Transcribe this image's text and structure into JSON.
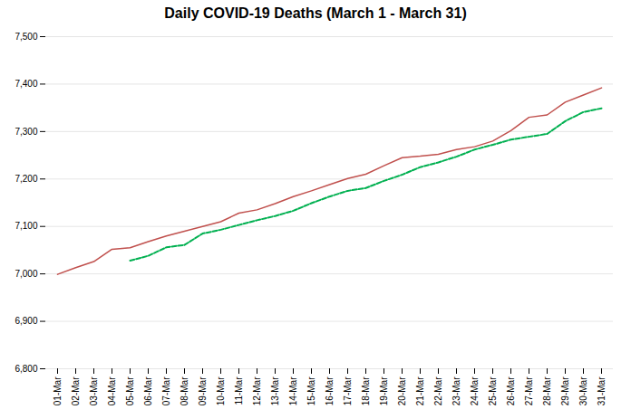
{
  "chart_data": {
    "type": "line",
    "title": "Daily COVID-19 Deaths (March 1 - March 31)",
    "categories": [
      "01-Mar",
      "02-Mar",
      "03-Mar",
      "04-Mar",
      "05-Mar",
      "06-Mar",
      "07-Mar",
      "08-Mar",
      "09-Mar",
      "10-Mar",
      "11-Mar",
      "12-Mar",
      "13-Mar",
      "14-Mar",
      "15-Mar",
      "16-Mar",
      "17-Mar",
      "18-Mar",
      "19-Mar",
      "20-Mar",
      "21-Mar",
      "22-Mar",
      "23-Mar",
      "24-Mar",
      "25-Mar",
      "26-Mar",
      "27-Mar",
      "28-Mar",
      "29-Mar",
      "30-Mar",
      "31-Mar"
    ],
    "series": [
      {
        "color": "#C0504D",
        "line_style": "solid",
        "values": [
          6999,
          7013,
          7026,
          7052,
          7055,
          7068,
          7080,
          7090,
          7100,
          7110,
          7128,
          7135,
          7148,
          7163,
          7175,
          7188,
          7201,
          7210,
          7228,
          7245,
          7248,
          7252,
          7262,
          7268,
          7280,
          7302,
          7330,
          7335,
          7362,
          7377,
          7392
        ]
      },
      {
        "color": "#00B050",
        "line_style": "dashed",
        "values": [
          null,
          null,
          null,
          null,
          7028,
          7038,
          7056,
          7061,
          7085,
          7093,
          7103,
          7113,
          7122,
          7133,
          7149,
          7163,
          7175,
          7181,
          7196,
          7209,
          7225,
          7235,
          7247,
          7262,
          7272,
          7283,
          7289,
          7295,
          7322,
          7341,
          7349
        ]
      }
    ],
    "ylim": [
      6800,
      7500
    ],
    "yticks": [
      {
        "value": 6800,
        "label": "6,800"
      },
      {
        "value": 6900,
        "label": "6,900"
      },
      {
        "value": 7000,
        "label": "7,000"
      },
      {
        "value": 7100,
        "label": "7,100"
      },
      {
        "value": 7200,
        "label": "7,200"
      },
      {
        "value": 7300,
        "label": "7,300"
      },
      {
        "value": 7400,
        "label": "7,400"
      },
      {
        "value": 7500,
        "label": "7,500"
      }
    ],
    "grid": true
  }
}
